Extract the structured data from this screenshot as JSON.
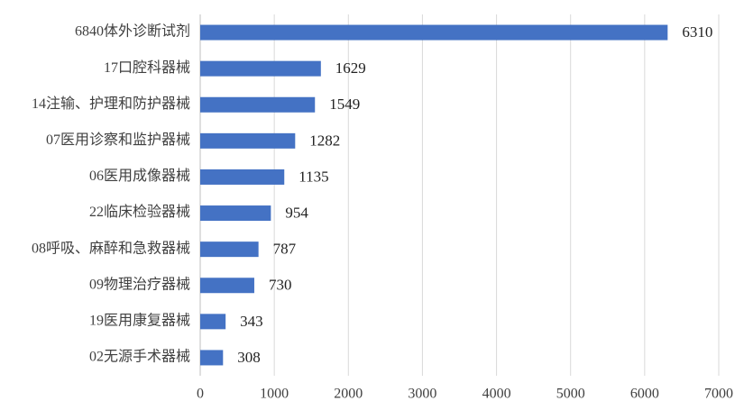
{
  "chart_data": {
    "type": "barh",
    "categories": [
      "6840体外诊断试剂",
      "17口腔科器械",
      "14注输、护理和防护器械",
      "07医用诊察和监护器械",
      "06医用成像器械",
      "22临床检验器械",
      "08呼吸、麻醉和急救器械",
      "09物理治疗器械",
      "19医用康复器械",
      "02无源手术器械"
    ],
    "values": [
      6310,
      1629,
      1549,
      1282,
      1135,
      954,
      787,
      730,
      343,
      308
    ],
    "color": "#4472c4",
    "xlim": [
      0,
      7000
    ],
    "xticks": [
      0,
      1000,
      2000,
      3000,
      4000,
      5000,
      6000,
      7000
    ],
    "grid": true
  }
}
